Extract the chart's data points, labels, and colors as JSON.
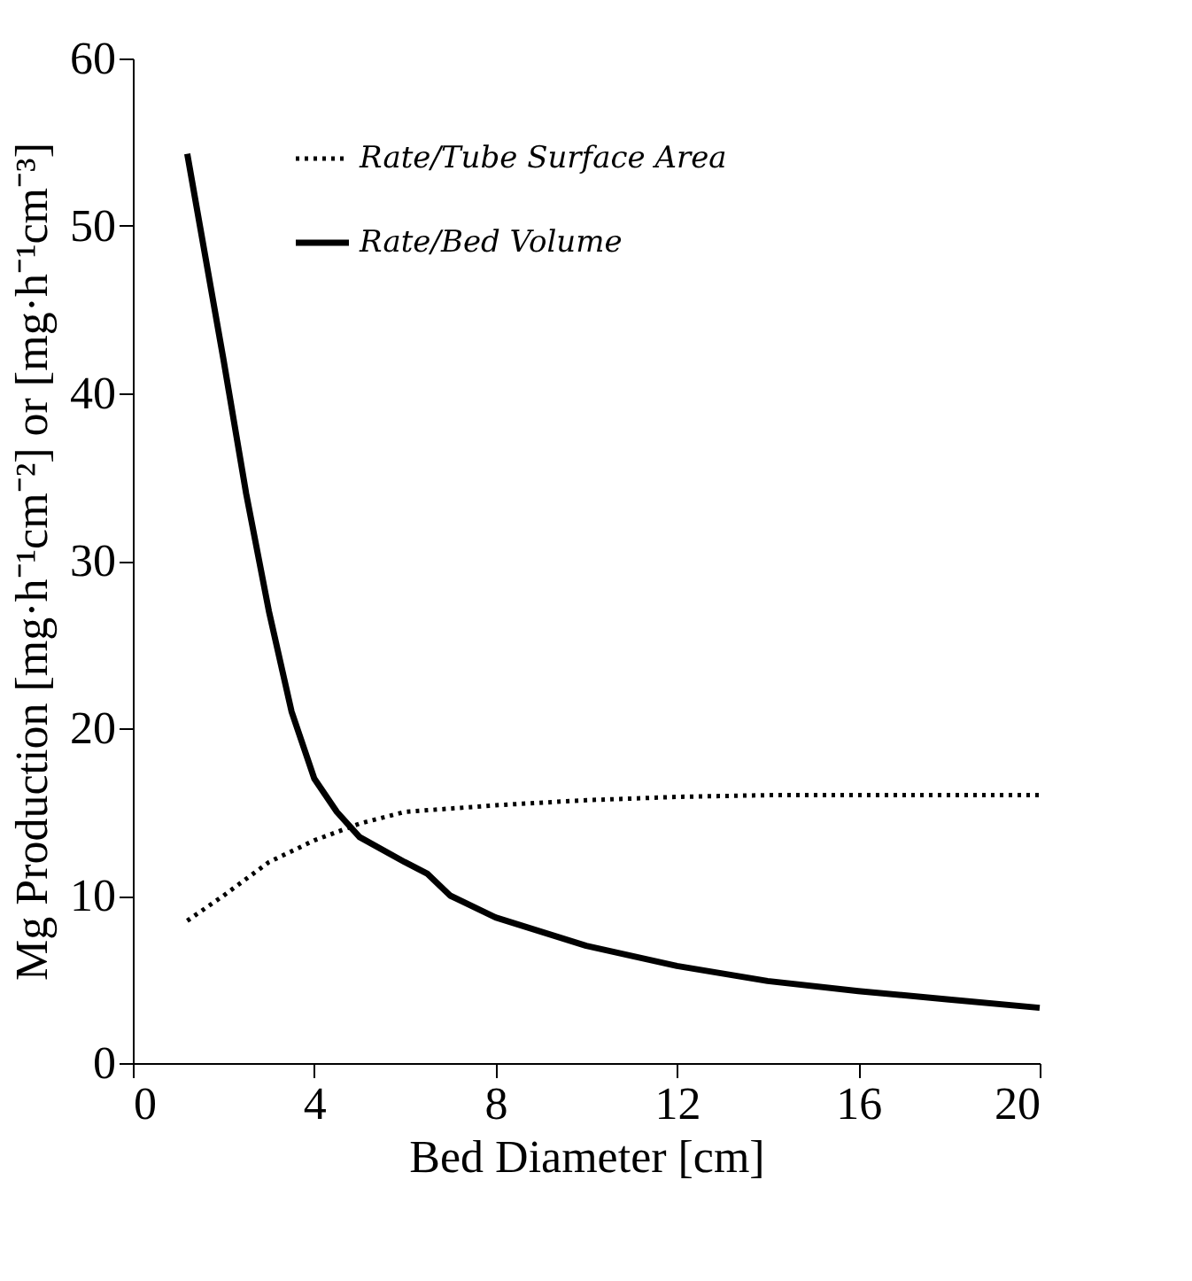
{
  "chart_data": {
    "type": "line",
    "xlabel": "Bed Diameter [cm]",
    "ylabel": "Mg Production [mg·h⁻¹cm⁻²] or [mg·h⁻¹cm⁻³]",
    "xlim": [
      0,
      20
    ],
    "xticks": [
      0,
      4,
      8,
      12,
      16,
      20
    ],
    "ylim": [
      0,
      60
    ],
    "yticks": [
      0,
      10,
      20,
      30,
      40,
      50,
      60
    ],
    "grid": false,
    "legend": "top",
    "series": [
      {
        "name": "Rate/Tube Surface Area",
        "color": "#000000",
        "line_style": "dotted",
        "x": [
          1.2,
          2,
          3,
          4,
          5,
          6,
          7,
          8,
          10,
          12,
          14,
          16,
          18,
          20
        ],
        "values": [
          8.5,
          10,
          12,
          13.3,
          14.3,
          15,
          15.2,
          15.4,
          15.7,
          15.9,
          16,
          16,
          16,
          16
        ]
      },
      {
        "name": "Rate/Bed Volume",
        "color": "#000000",
        "line_style": "solid",
        "x": [
          1.2,
          2,
          2.5,
          3,
          3.5,
          4,
          4.5,
          5,
          6,
          6.5,
          7,
          8,
          10,
          12,
          14,
          16,
          18,
          20
        ],
        "values": [
          54.3,
          42,
          34,
          27,
          21,
          17,
          15,
          13.5,
          12,
          11.3,
          10,
          8.7,
          7,
          5.8,
          4.9,
          4.3,
          3.8,
          3.3
        ]
      }
    ]
  }
}
